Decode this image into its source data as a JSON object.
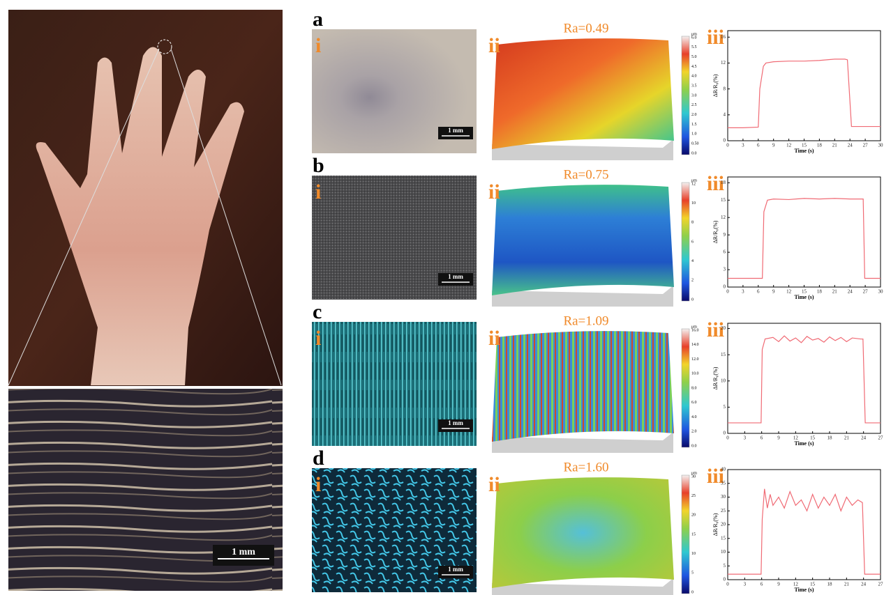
{
  "figure": {
    "photo": {
      "scale_bar": "1 mm"
    },
    "panels": [
      {
        "label": "a",
        "image_label": "i",
        "scale_bar": "1 mm",
        "surface_label": "ii",
        "ra": "Ra=0.49",
        "colorbar_unit": "μm",
        "colorbar_ticks": [
          "0.0",
          "0.50",
          "1.0",
          "1.5",
          "2.0",
          "2.5",
          "3.0",
          "3.5",
          "4.0",
          "4.5",
          "5.0",
          "5.5",
          "6.0"
        ],
        "chart_label": "iii",
        "chart": {
          "type": "line",
          "x_label": "Time (s)",
          "y_label": "ΔR/R₀(%)",
          "color": "#f06a74",
          "x": [
            0,
            3,
            6,
            6.3,
            7,
            7.5,
            9,
            12,
            15,
            18,
            21,
            23,
            23.5,
            24.3,
            27,
            30
          ],
          "values": [
            2,
            2,
            2.1,
            8,
            11.5,
            12,
            12.2,
            12.3,
            12.3,
            12.4,
            12.6,
            12.6,
            12.5,
            2.2,
            2.2,
            2.2
          ],
          "xlim": [
            0,
            30
          ],
          "ylim": [
            0,
            17
          ],
          "xticks": [
            0,
            3,
            6,
            9,
            12,
            15,
            18,
            21,
            24,
            27,
            30
          ],
          "yticks": [
            0,
            4,
            8,
            12,
            16
          ]
        }
      },
      {
        "label": "b",
        "image_label": "i",
        "scale_bar": "1 mm",
        "surface_label": "ii",
        "ra": "Ra=0.75",
        "colorbar_unit": "μm",
        "colorbar_ticks": [
          "0",
          "2",
          "4",
          "6",
          "8",
          "10",
          "12"
        ],
        "chart_label": "iii",
        "chart": {
          "type": "line",
          "x_label": "Time (s)",
          "y_label": "ΔR/R₀(%)",
          "color": "#f06a74",
          "x": [
            0,
            3,
            6.8,
            7.1,
            7.8,
            9,
            12,
            15,
            18,
            21,
            24,
            26.6,
            26.9,
            28,
            30
          ],
          "values": [
            1.5,
            1.5,
            1.5,
            13,
            15,
            15.2,
            15.1,
            15.3,
            15.2,
            15.3,
            15.2,
            15.2,
            1.5,
            1.5,
            1.5
          ],
          "xlim": [
            0,
            30
          ],
          "ylim": [
            0,
            19
          ],
          "xticks": [
            0,
            3,
            6,
            9,
            12,
            15,
            18,
            21,
            24,
            27,
            30
          ],
          "yticks": [
            0,
            3,
            6,
            9,
            12,
            15,
            18
          ]
        }
      },
      {
        "label": "c",
        "image_label": "i",
        "scale_bar": "1 mm",
        "surface_label": "ii",
        "ra": "Ra=1.09",
        "colorbar_unit": "μm",
        "colorbar_ticks": [
          "0.0",
          "2.0",
          "4.0",
          "6.0",
          "8.0",
          "10.0",
          "12.0",
          "14.0",
          "16.0"
        ],
        "chart_label": "iii",
        "chart": {
          "type": "line",
          "x_label": "Time (s)",
          "y_label": "ΔR/R₀(%)",
          "color": "#f06a74",
          "x": [
            0,
            3,
            5.9,
            6.1,
            6.6,
            8,
            9,
            10,
            11,
            12,
            13,
            14,
            15,
            16,
            17,
            18,
            19,
            20,
            21,
            22,
            23.5,
            23.9,
            24.3,
            25.5,
            27
          ],
          "values": [
            2,
            2,
            2,
            16,
            18,
            18.3,
            17.5,
            18.6,
            17.6,
            18.2,
            17.3,
            18.5,
            17.8,
            18.1,
            17.4,
            18.4,
            17.7,
            18.3,
            17.5,
            18.2,
            18,
            18,
            2,
            2,
            2
          ],
          "xlim": [
            0,
            27
          ],
          "ylim": [
            0,
            21
          ],
          "xticks": [
            0,
            3,
            6,
            9,
            12,
            15,
            18,
            21,
            24,
            27
          ],
          "yticks": [
            0,
            5,
            10,
            15,
            20
          ]
        }
      },
      {
        "label": "d",
        "image_label": "i",
        "scale_bar": "1 mm",
        "surface_label": "ii",
        "ra": "Ra=1.60",
        "colorbar_unit": "μm",
        "colorbar_ticks": [
          "0",
          "5",
          "10",
          "15",
          "20",
          "25",
          "30"
        ],
        "chart_label": "iii",
        "chart": {
          "type": "line",
          "x_label": "Time (s)",
          "y_label": "ΔR/R₀(%)",
          "color": "#f06a74",
          "x": [
            0,
            3,
            5.9,
            6.1,
            6.5,
            7,
            7.5,
            8,
            9,
            10,
            11,
            12,
            13,
            14,
            15,
            16,
            17,
            18,
            19,
            20,
            21,
            22,
            23,
            23.8,
            24.2,
            25.5,
            27
          ],
          "values": [
            2,
            2,
            2,
            22,
            33,
            26,
            31,
            27,
            30,
            26,
            32,
            27,
            29,
            25,
            31,
            26,
            30,
            27,
            31,
            25,
            30,
            27,
            29,
            28,
            2,
            2,
            2
          ],
          "xlim": [
            0,
            27
          ],
          "ylim": [
            0,
            40
          ],
          "xticks": [
            0,
            3,
            6,
            9,
            12,
            15,
            18,
            21,
            24,
            27
          ],
          "yticks": [
            0,
            5,
            10,
            15,
            20,
            25,
            30,
            35,
            40
          ]
        }
      }
    ]
  }
}
